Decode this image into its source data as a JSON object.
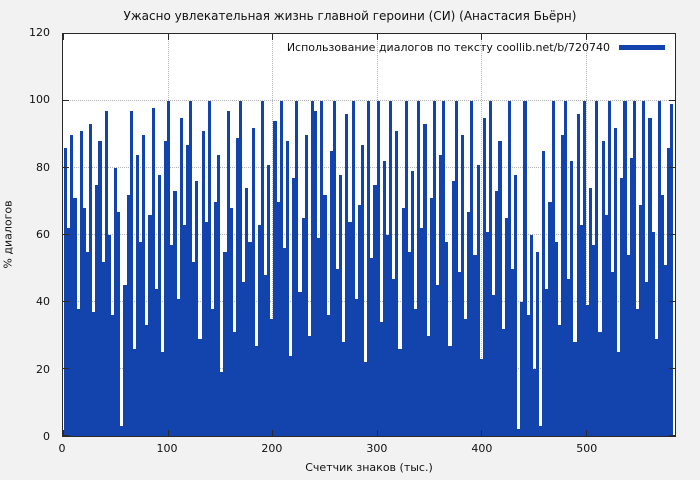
{
  "figure": {
    "title": "Ужасно увлекательная жизнь главной героини (СИ) (Анастасия Бьёрн)",
    "legend_label": "Использование диалогов по тексту coollib.net/b/720740",
    "xlabel": "Счетчик знаков (тыс.)",
    "ylabel": "% диалогов",
    "bar_color": "#1344ad",
    "background": "#f2f2f2",
    "plot_background": "#ffffff"
  },
  "chart_data": {
    "type": "bar",
    "title": "Ужасно увлекательная жизнь главной героини (СИ) (Анастасия Бьёрн)",
    "legend": [
      "Использование диалогов по тексту coollib.net/b/720740"
    ],
    "legend_position": "top-right",
    "xlabel": "Счетчик знаков (тыс.)",
    "ylabel": "% диалогов",
    "xlim": [
      0,
      585
    ],
    "ylim": [
      0,
      120
    ],
    "xticks": [
      0,
      100,
      200,
      300,
      400,
      500
    ],
    "yticks": [
      0,
      20,
      40,
      60,
      80,
      100,
      120
    ],
    "grid": true,
    "x_start": 0,
    "x_step": 3,
    "values": [
      86,
      62,
      90,
      71,
      38,
      91,
      68,
      55,
      93,
      37,
      75,
      88,
      52,
      97,
      60,
      36,
      80,
      67,
      3,
      45,
      72,
      97,
      26,
      84,
      58,
      90,
      33,
      66,
      98,
      44,
      78,
      25,
      88,
      100,
      57,
      73,
      41,
      95,
      63,
      87,
      100,
      52,
      76,
      29,
      91,
      64,
      100,
      38,
      70,
      84,
      19,
      55,
      97,
      68,
      31,
      89,
      100,
      46,
      74,
      58,
      92,
      27,
      63,
      100,
      48,
      81,
      35,
      94,
      70,
      100,
      56,
      88,
      24,
      77,
      100,
      43,
      65,
      90,
      30,
      100,
      97,
      59,
      100,
      72,
      36,
      85,
      100,
      50,
      78,
      28,
      96,
      64,
      100,
      41,
      69,
      87,
      22,
      100,
      53,
      75,
      100,
      34,
      82,
      60,
      100,
      47,
      91,
      26,
      68,
      100,
      55,
      79,
      38,
      100,
      62,
      93,
      30,
      71,
      100,
      45,
      84,
      100,
      58,
      27,
      76,
      100,
      49,
      90,
      35,
      67,
      100,
      54,
      81,
      23,
      95,
      61,
      100,
      42,
      73,
      88,
      32,
      65,
      100,
      50,
      78,
      2,
      40,
      100,
      36,
      60,
      20,
      55,
      3,
      85,
      44,
      70,
      100,
      58,
      33,
      90,
      100,
      47,
      82,
      28,
      96,
      63,
      100,
      39,
      74,
      57,
      100,
      31,
      88,
      66,
      100,
      49,
      92,
      25,
      77,
      100,
      54,
      83,
      100,
      38,
      69,
      100,
      46,
      95,
      61,
      29,
      100,
      72,
      51,
      86,
      99
    ]
  }
}
